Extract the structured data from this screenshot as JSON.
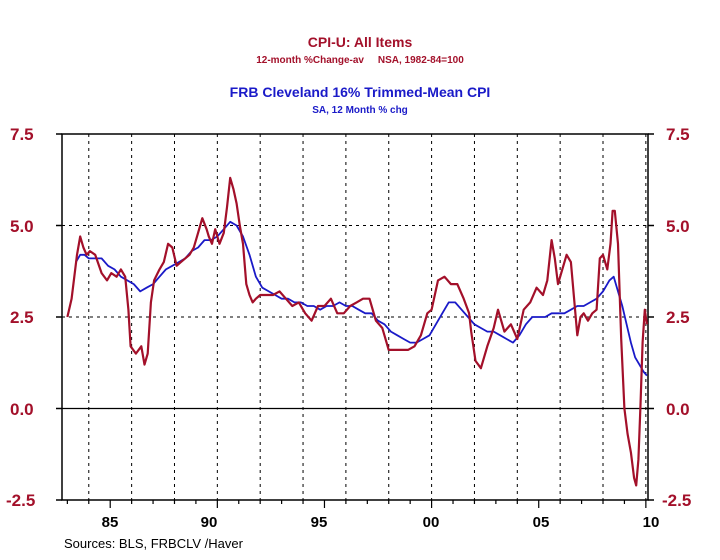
{
  "colors": {
    "cpi": "#a3102a",
    "trimmed": "#1a1ac8",
    "axis": "#000000",
    "grid": "#000000"
  },
  "source": "Sources:  BLS, FRBCLV /Haver",
  "chart_data": {
    "type": "line",
    "title": "CPI-U: All Items",
    "subtitle": "12-month %Change-av     NSA, 1982-84=100",
    "title2": "FRB Cleveland 16% Trimmed-Mean CPI",
    "subtitle2": "SA, 12 Month % chg",
    "xlim": [
      1982.75,
      2010.1
    ],
    "ylim": [
      -2.5,
      7.5
    ],
    "yticks": [
      "7.5",
      "5.0",
      "2.5",
      "0.0",
      "-2.5"
    ],
    "yticks_values": [
      7.5,
      5.0,
      2.5,
      0.0,
      -2.5
    ],
    "xticks": [
      "85",
      "90",
      "95",
      "00",
      "05",
      "10"
    ],
    "xticks_values": [
      1985,
      1990,
      1995,
      2000,
      2005,
      2010
    ],
    "vgrid_values": [
      1984,
      1986,
      1988,
      1990,
      1992,
      1994,
      1996,
      1998,
      2000,
      2002,
      2004,
      2006,
      2008,
      2010
    ],
    "hgrid_values": [
      2.5,
      5.0
    ],
    "zero_line": 0.0,
    "grid": true,
    "series": [
      {
        "name": "CPI-U: All Items",
        "x": [
          1983.0,
          1983.2,
          1983.45,
          1983.6,
          1983.75,
          1983.9,
          1984.05,
          1984.3,
          1984.6,
          1984.85,
          1985.05,
          1985.3,
          1985.5,
          1985.7,
          1985.85,
          1985.95,
          1986.2,
          1986.45,
          1986.6,
          1986.75,
          1986.9,
          1987.05,
          1987.3,
          1987.5,
          1987.7,
          1987.9,
          1988.1,
          1988.3,
          1988.5,
          1988.7,
          1988.9,
          1989.1,
          1989.3,
          1989.5,
          1989.6,
          1989.75,
          1989.9,
          1990.1,
          1990.3,
          1990.45,
          1990.6,
          1990.75,
          1990.9,
          1991.05,
          1991.2,
          1991.35,
          1991.5,
          1991.65,
          1991.8,
          1992.0,
          1992.3,
          1992.6,
          1992.9,
          1993.2,
          1993.5,
          1993.8,
          1994.1,
          1994.4,
          1994.7,
          1995.0,
          1995.3,
          1995.6,
          1995.9,
          1996.2,
          1996.5,
          1996.8,
          1997.1,
          1997.4,
          1997.7,
          1998.0,
          1998.3,
          1998.6,
          1998.9,
          1999.2,
          1999.5,
          1999.8,
          2000.0,
          2000.3,
          2000.6,
          2000.9,
          2001.2,
          2001.5,
          2001.75,
          2001.85,
          2002.05,
          2002.3,
          2002.6,
          2002.9,
          2003.1,
          2003.4,
          2003.7,
          2004.0,
          2004.3,
          2004.6,
          2004.9,
          2005.2,
          2005.4,
          2005.6,
          2005.75,
          2005.9,
          2006.1,
          2006.3,
          2006.5,
          2006.65,
          2006.8,
          2006.95,
          2007.1,
          2007.3,
          2007.5,
          2007.7,
          2007.85,
          2008.0,
          2008.2,
          2008.35,
          2008.45,
          2008.55,
          2008.7,
          2008.85,
          2009.0,
          2009.15,
          2009.3,
          2009.45,
          2009.55,
          2009.65,
          2009.75,
          2009.85,
          2009.95,
          2010.05
        ],
        "values": [
          2.5,
          3.0,
          4.2,
          4.7,
          4.4,
          4.2,
          4.3,
          4.2,
          3.7,
          3.5,
          3.7,
          3.6,
          3.8,
          3.6,
          2.7,
          1.7,
          1.5,
          1.7,
          1.2,
          1.5,
          2.9,
          3.5,
          3.8,
          4.0,
          4.5,
          4.4,
          3.9,
          4.0,
          4.1,
          4.2,
          4.4,
          4.8,
          5.2,
          4.9,
          4.7,
          4.5,
          4.9,
          4.5,
          4.8,
          5.5,
          6.3,
          6.0,
          5.6,
          5.0,
          4.5,
          3.4,
          3.1,
          2.9,
          3.0,
          3.1,
          3.1,
          3.1,
          3.2,
          3.0,
          2.8,
          2.9,
          2.6,
          2.4,
          2.8,
          2.8,
          3.0,
          2.6,
          2.6,
          2.8,
          2.9,
          3.0,
          3.0,
          2.4,
          2.2,
          1.6,
          1.6,
          1.6,
          1.6,
          1.7,
          2.0,
          2.6,
          2.7,
          3.5,
          3.6,
          3.4,
          3.4,
          3.0,
          2.6,
          2.1,
          1.3,
          1.1,
          1.7,
          2.2,
          2.7,
          2.1,
          2.3,
          1.9,
          2.7,
          2.9,
          3.3,
          3.1,
          3.5,
          4.6,
          4.1,
          3.4,
          3.8,
          4.2,
          4.0,
          3.0,
          2.0,
          2.5,
          2.6,
          2.4,
          2.6,
          2.7,
          4.1,
          4.2,
          3.8,
          4.5,
          5.4,
          5.4,
          4.5,
          1.9,
          0.0,
          -0.7,
          -1.2,
          -1.9,
          -2.1,
          -1.4,
          0.1,
          1.8,
          2.7,
          2.3
        ]
      },
      {
        "name": "FRB Cleveland 16% Trimmed-Mean CPI",
        "x": [
          1983.4,
          1983.6,
          1983.8,
          1984.0,
          1984.3,
          1984.6,
          1984.9,
          1985.2,
          1985.5,
          1985.8,
          1986.1,
          1986.4,
          1986.7,
          1987.0,
          1987.3,
          1987.6,
          1987.9,
          1988.2,
          1988.5,
          1988.8,
          1989.1,
          1989.4,
          1989.7,
          1990.0,
          1990.3,
          1990.6,
          1990.9,
          1991.2,
          1991.5,
          1991.8,
          1992.1,
          1992.4,
          1992.7,
          1993.0,
          1993.3,
          1993.6,
          1993.9,
          1994.2,
          1994.5,
          1994.8,
          1995.1,
          1995.4,
          1995.7,
          1996.0,
          1996.3,
          1996.6,
          1996.9,
          1997.2,
          1997.5,
          1997.8,
          1998.1,
          1998.4,
          1998.7,
          1999.0,
          1999.3,
          1999.6,
          1999.9,
          2000.2,
          2000.5,
          2000.8,
          2001.1,
          2001.4,
          2001.7,
          2002.0,
          2002.3,
          2002.6,
          2002.9,
          2003.2,
          2003.5,
          2003.8,
          2004.1,
          2004.4,
          2004.7,
          2005.0,
          2005.3,
          2005.6,
          2005.9,
          2006.2,
          2006.5,
          2006.8,
          2007.1,
          2007.4,
          2007.7,
          2008.0,
          2008.3,
          2008.5,
          2008.7,
          2008.9,
          2009.1,
          2009.3,
          2009.5,
          2009.7,
          2009.9,
          2010.05
        ],
        "values": [
          4.0,
          4.2,
          4.2,
          4.1,
          4.1,
          4.1,
          3.9,
          3.8,
          3.6,
          3.5,
          3.4,
          3.2,
          3.3,
          3.4,
          3.6,
          3.8,
          3.9,
          4.0,
          4.1,
          4.3,
          4.4,
          4.6,
          4.6,
          4.7,
          4.9,
          5.1,
          5.0,
          4.7,
          4.2,
          3.6,
          3.3,
          3.2,
          3.1,
          3.0,
          3.0,
          2.9,
          2.9,
          2.8,
          2.8,
          2.7,
          2.8,
          2.8,
          2.9,
          2.8,
          2.8,
          2.7,
          2.6,
          2.6,
          2.4,
          2.3,
          2.1,
          2.0,
          1.9,
          1.8,
          1.8,
          1.9,
          2.0,
          2.3,
          2.6,
          2.9,
          2.9,
          2.7,
          2.5,
          2.3,
          2.2,
          2.1,
          2.1,
          2.0,
          1.9,
          1.8,
          2.0,
          2.3,
          2.5,
          2.5,
          2.5,
          2.6,
          2.6,
          2.6,
          2.7,
          2.8,
          2.8,
          2.9,
          3.0,
          3.2,
          3.5,
          3.6,
          3.2,
          2.8,
          2.3,
          1.8,
          1.4,
          1.2,
          1.0,
          0.9
        ]
      }
    ]
  }
}
